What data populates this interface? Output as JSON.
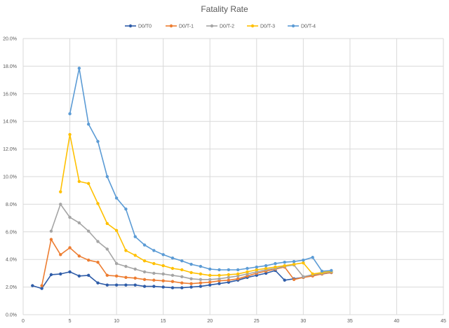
{
  "chart_data": {
    "type": "line",
    "title": "Fatality Rate",
    "xlabel": "",
    "ylabel": "",
    "xlim": [
      0,
      45
    ],
    "ylim": [
      0,
      20
    ],
    "x_ticks": [
      0,
      5,
      10,
      15,
      20,
      25,
      30,
      35,
      40,
      45
    ],
    "y_ticks": [
      0,
      2,
      4,
      6,
      8,
      10,
      12,
      14,
      16,
      18,
      20
    ],
    "x_tick_labels": [
      "0",
      "5",
      "10",
      "15",
      "20",
      "25",
      "30",
      "35",
      "40",
      "45"
    ],
    "y_tick_labels": [
      "0.0%",
      "2.0%",
      "4.0%",
      "6.0%",
      "8.0%",
      "10.0%",
      "12.0%",
      "14.0%",
      "16.0%",
      "18.0%",
      "20.0%"
    ],
    "grid": true,
    "legend_position": "top-center",
    "series": [
      {
        "name": "D0/T0",
        "color": "#2e5ca8",
        "x": [
          1,
          2,
          3,
          4,
          5,
          6,
          7,
          8,
          9,
          10,
          11,
          12,
          13,
          14,
          15,
          16,
          17,
          18,
          19,
          20,
          21,
          22,
          23,
          24,
          25,
          26,
          27,
          28,
          29,
          30,
          31,
          32,
          33
        ],
        "values": [
          2.1,
          1.9,
          2.9,
          2.95,
          3.1,
          2.8,
          2.85,
          2.3,
          2.15,
          2.15,
          2.15,
          2.15,
          2.05,
          2.05,
          2.0,
          1.95,
          1.95,
          2.0,
          2.05,
          2.15,
          2.25,
          2.35,
          2.5,
          2.7,
          2.85,
          3.0,
          3.2,
          2.5,
          2.6,
          2.7,
          2.85,
          2.95,
          3.05
        ]
      },
      {
        "name": "D0/T-1",
        "color": "#ed7d31",
        "x": [
          2,
          3,
          4,
          5,
          6,
          7,
          8,
          9,
          10,
          11,
          12,
          13,
          14,
          15,
          16,
          17,
          18,
          19,
          20,
          21,
          22,
          23,
          24,
          25,
          26,
          27,
          28,
          29,
          30,
          31,
          32,
          33
        ],
        "values": [
          2.1,
          5.45,
          4.35,
          4.85,
          4.25,
          3.95,
          3.8,
          2.85,
          2.8,
          2.7,
          2.65,
          2.55,
          2.5,
          2.45,
          2.4,
          2.3,
          2.25,
          2.3,
          2.35,
          2.45,
          2.5,
          2.6,
          2.8,
          3.0,
          3.15,
          3.3,
          3.45,
          2.55,
          2.7,
          2.8,
          2.95,
          3.05
        ]
      },
      {
        "name": "D0/T-2",
        "color": "#a5a5a5",
        "x": [
          3,
          4,
          5,
          6,
          7,
          8,
          9,
          10,
          11,
          12,
          13,
          14,
          15,
          16,
          17,
          18,
          19,
          20,
          21,
          22,
          23,
          24,
          25,
          26,
          27,
          28,
          29,
          30,
          31,
          32,
          33
        ],
        "values": [
          6.05,
          8.0,
          7.05,
          6.65,
          6.05,
          5.3,
          4.75,
          3.7,
          3.5,
          3.3,
          3.1,
          3.0,
          2.95,
          2.85,
          2.75,
          2.6,
          2.55,
          2.55,
          2.6,
          2.7,
          2.8,
          2.95,
          3.1,
          3.25,
          3.35,
          3.5,
          3.6,
          2.75,
          2.9,
          3.0,
          3.1
        ]
      },
      {
        "name": "D0/T-3",
        "color": "#ffc000",
        "x": [
          4,
          5,
          6,
          7,
          8,
          9,
          10,
          11,
          12,
          13,
          14,
          15,
          16,
          17,
          18,
          19,
          20,
          21,
          22,
          23,
          24,
          25,
          26,
          27,
          28,
          29,
          30,
          31,
          32,
          33
        ],
        "values": [
          8.9,
          13.05,
          9.65,
          9.5,
          8.05,
          6.6,
          6.1,
          4.65,
          4.3,
          3.9,
          3.7,
          3.55,
          3.35,
          3.25,
          3.05,
          2.95,
          2.85,
          2.85,
          2.9,
          2.95,
          3.1,
          3.25,
          3.35,
          3.45,
          3.55,
          3.65,
          3.75,
          2.95,
          3.05,
          3.15
        ]
      },
      {
        "name": "D0/T-4",
        "color": "#5b9bd5",
        "x": [
          5,
          6,
          7,
          8,
          9,
          10,
          11,
          12,
          13,
          14,
          15,
          16,
          17,
          18,
          19,
          20,
          21,
          22,
          23,
          24,
          25,
          26,
          27,
          28,
          29,
          30,
          31,
          32,
          33
        ],
        "values": [
          14.55,
          17.85,
          13.8,
          12.55,
          10.0,
          8.45,
          7.65,
          5.65,
          5.05,
          4.65,
          4.35,
          4.1,
          3.9,
          3.65,
          3.5,
          3.3,
          3.25,
          3.25,
          3.25,
          3.35,
          3.45,
          3.55,
          3.7,
          3.8,
          3.85,
          3.95,
          4.15,
          3.15,
          3.2
        ]
      }
    ]
  }
}
